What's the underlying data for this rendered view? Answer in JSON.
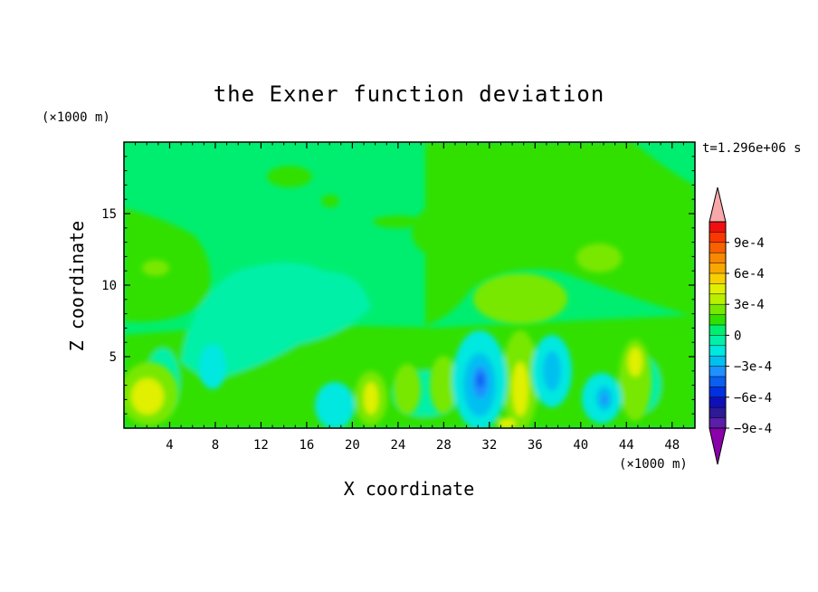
{
  "chart_data": {
    "type": "heatmap",
    "title": "the Exner function deviation",
    "xlabel": "X coordinate",
    "ylabel": "Z coordinate",
    "x_unit": "(×1000 m)",
    "y_unit": "(×1000 m)",
    "time_label": "t=1.296e+06 s",
    "xlim": [
      0,
      50
    ],
    "ylim": [
      0,
      20
    ],
    "x_ticks": [
      4,
      8,
      12,
      16,
      20,
      24,
      28,
      32,
      36,
      40,
      44,
      48
    ],
    "y_ticks": [
      5,
      10,
      15
    ],
    "colorbar": {
      "levels": [
        -0.0011,
        -0.001,
        -0.0009,
        -0.0008,
        -0.0007,
        -0.0006,
        -0.0005,
        -0.0004,
        -0.0003,
        -0.0002,
        -0.0001,
        0,
        0.0001,
        0.0002,
        0.0003,
        0.0004,
        0.0005,
        0.0006,
        0.0007,
        0.0008,
        0.0009,
        0.001,
        0.0011
      ],
      "tick_labels": [
        "9e-4",
        "6e-4",
        "3e-4",
        "0",
        "−3e-4",
        "−6e-4",
        "−9e-4"
      ],
      "colors": [
        "#8a00aa",
        "#5a1ea8",
        "#2c1a96",
        "#1010b8",
        "#0030e0",
        "#0a5ef0",
        "#1e90ff",
        "#00c0f0",
        "#00e8e0",
        "#00f0a8",
        "#00ee70",
        "#30e000",
        "#78e800",
        "#b8f000",
        "#e0f000",
        "#f8d000",
        "#f8a800",
        "#f88800",
        "#f86000",
        "#f83800",
        "#f01010",
        "#f8a8a8"
      ]
    },
    "features": [
      {
        "x": 31,
        "z": 3,
        "value": -0.0006
      },
      {
        "x": 42,
        "z": 2,
        "value": -0.0004
      },
      {
        "x": 19,
        "z": 1.5,
        "value": -0.0002
      },
      {
        "x": 2.5,
        "z": 2.5,
        "value": 0.0003
      },
      {
        "x": 35,
        "z": 4,
        "value": 0.0002
      },
      {
        "x": 45,
        "z": 4,
        "value": 0.0002
      },
      {
        "x": 34,
        "z": 8,
        "value": 0.0001
      },
      {
        "x": 42,
        "z": 11.5,
        "value": 0.0001
      },
      {
        "x": 3,
        "z": 11,
        "value": 0.0001
      }
    ]
  }
}
